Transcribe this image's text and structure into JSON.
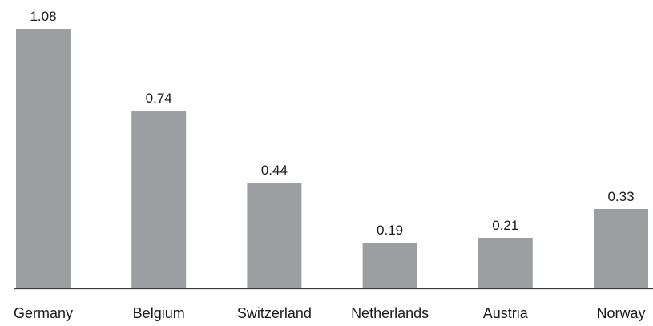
{
  "chart_data": {
    "type": "bar",
    "title": "",
    "xlabel": "",
    "ylabel": "",
    "categories": [
      "Germany",
      "Belgium",
      "Switzerland",
      "Netherlands",
      "Austria",
      "Norway"
    ],
    "values": [
      1.08,
      0.74,
      0.44,
      0.19,
      0.21,
      0.33
    ],
    "value_labels": [
      "1.08",
      "0.74",
      "0.44",
      "0.19",
      "0.21",
      "0.33"
    ],
    "ylim": [
      0,
      1.08
    ],
    "grid": false,
    "legend": "none",
    "colors": {
      "bar": "#9d9ea2",
      "axis": "#3a3a3a",
      "text": "#1a1a1a"
    }
  }
}
